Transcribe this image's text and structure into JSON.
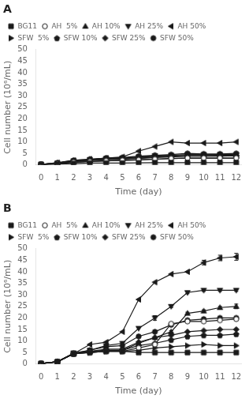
{
  "chart_data": [
    {
      "type": "line",
      "title": "A",
      "xlabel": "Time (day)",
      "ylabel": "Cell number (10⁶/mL)",
      "x": [
        0,
        1,
        2,
        3,
        4,
        5,
        6,
        7,
        8,
        9,
        10,
        11,
        12
      ],
      "xlim": [
        -0.3,
        12.3
      ],
      "xticks": [
        0,
        1,
        2,
        3,
        4,
        5,
        6,
        7,
        8,
        9,
        10,
        11,
        12
      ],
      "ylim": [
        0,
        50
      ],
      "yticks": [
        0,
        5,
        10,
        15,
        20,
        25,
        30,
        35,
        40,
        45,
        50
      ],
      "grid": false,
      "legend": "upper left",
      "series": [
        {
          "name": "BG11",
          "color": "#1a1a1a",
          "marker": "square",
          "values": [
            0.2,
            0.4,
            0.6,
            0.8,
            0.8,
            0.8,
            0.9,
            1.0,
            1.0,
            1.0,
            1.0,
            1.0,
            1.0
          ]
        },
        {
          "name": "AH  5%",
          "color": "#1a1a1a",
          "marker": "circle-open",
          "values": [
            0.2,
            0.5,
            1.2,
            1.5,
            1.8,
            2.0,
            2.2,
            2.5,
            2.8,
            3.0,
            3.0,
            3.0,
            3.0
          ]
        },
        {
          "name": "AH 10%",
          "color": "#1a1a1a",
          "marker": "triangle-up",
          "values": [
            0.2,
            0.8,
            1.5,
            2.0,
            2.5,
            2.8,
            3.0,
            3.5,
            3.8,
            4.0,
            4.0,
            4.2,
            4.2
          ]
        },
        {
          "name": "AH 25%",
          "color": "#1a1a1a",
          "marker": "triangle-down",
          "values": [
            0.2,
            0.8,
            1.8,
            2.3,
            2.8,
            3.0,
            3.5,
            4.0,
            4.2,
            4.5,
            4.5,
            4.5,
            4.5
          ]
        },
        {
          "name": "AH 50%",
          "color": "#1a1a1a",
          "marker": "triangle-left",
          "values": [
            0.2,
            1.0,
            2.0,
            2.5,
            3.0,
            3.5,
            6.0,
            8.0,
            10.0,
            9.5,
            9.5,
            9.5,
            10.0
          ]
        },
        {
          "name": "SFW  5%",
          "color": "#1a1a1a",
          "marker": "triangle-right",
          "values": [
            0.2,
            0.5,
            1.2,
            1.5,
            1.8,
            2.0,
            2.2,
            2.5,
            2.8,
            3.0,
            3.0,
            3.0,
            3.0
          ]
        },
        {
          "name": "SFW 10%",
          "color": "#1a1a1a",
          "marker": "pentagon",
          "values": [
            0.2,
            0.7,
            1.5,
            2.0,
            2.3,
            2.5,
            2.8,
            3.2,
            3.5,
            3.8,
            3.8,
            3.8,
            4.0
          ]
        },
        {
          "name": "SFW 25%",
          "color": "#1a1a1a",
          "marker": "diamond",
          "values": [
            0.2,
            0.8,
            1.8,
            2.3,
            2.8,
            2.8,
            3.2,
            3.8,
            3.8,
            4.0,
            4.0,
            4.0,
            4.0
          ]
        },
        {
          "name": "SFW 50%",
          "color": "#1a1a1a",
          "marker": "circle",
          "values": [
            0.2,
            0.8,
            2.0,
            2.5,
            3.0,
            3.2,
            3.8,
            4.2,
            4.5,
            5.0,
            4.8,
            4.8,
            5.0
          ]
        }
      ]
    },
    {
      "type": "line",
      "title": "B",
      "xlabel": "Time (day)",
      "ylabel": "Cell number (10⁶/mL)",
      "x": [
        0,
        1,
        2,
        3,
        4,
        5,
        6,
        7,
        8,
        9,
        10,
        11,
        12
      ],
      "xlim": [
        -0.3,
        12.3
      ],
      "xticks": [
        0,
        1,
        2,
        3,
        4,
        5,
        6,
        7,
        8,
        9,
        10,
        11,
        12
      ],
      "ylim": [
        0,
        50
      ],
      "yticks": [
        0,
        5,
        10,
        15,
        20,
        25,
        30,
        35,
        40,
        45,
        50
      ],
      "grid": false,
      "legend": "upper left",
      "series": [
        {
          "name": "BG11",
          "color": "#1a1a1a",
          "marker": "square",
          "values": [
            0.2,
            1.0,
            4.5,
            5.0,
            5.5,
            5.5,
            5.0,
            5.0,
            5.0,
            5.0,
            5.0,
            5.0,
            5.0
          ],
          "errors": [
            0,
            0,
            0,
            0,
            0,
            0,
            0,
            0,
            0,
            0,
            0,
            0,
            0
          ]
        },
        {
          "name": "AH  5%",
          "color": "#1a1a1a",
          "marker": "circle-open",
          "values": [
            0.2,
            1.0,
            4.5,
            5.0,
            5.5,
            5.5,
            7.0,
            8.5,
            17.5,
            18.5,
            18.5,
            19.0,
            19.5
          ],
          "errors": [
            0,
            0,
            0,
            0,
            0,
            0,
            0,
            0,
            0.5,
            0,
            0,
            0,
            0.5
          ]
        },
        {
          "name": "AH 10%",
          "color": "#1a1a1a",
          "marker": "triangle-up",
          "values": [
            0.2,
            1.0,
            4.5,
            5.5,
            6.0,
            6.0,
            9.0,
            11.5,
            14.0,
            22.0,
            23.0,
            24.5,
            25.0
          ],
          "errors": [
            0,
            0,
            0,
            0,
            0,
            0,
            0,
            0,
            0.5,
            0.5,
            0.5,
            0.5,
            1.0
          ]
        },
        {
          "name": "AH 25%",
          "color": "#1a1a1a",
          "marker": "triangle-down",
          "values": [
            0.2,
            1.0,
            4.8,
            6.0,
            8.0,
            9.0,
            15.5,
            20.0,
            25.0,
            31.0,
            32.0,
            32.0,
            32.0
          ],
          "errors": [
            0,
            0,
            0,
            0,
            0,
            0,
            0,
            1.0,
            0.5,
            0.5,
            0.5,
            0.5,
            0.5
          ]
        },
        {
          "name": "AH 50%",
          "color": "#1a1a1a",
          "marker": "triangle-left",
          "values": [
            0.2,
            1.0,
            4.5,
            8.5,
            9.5,
            14.0,
            28.0,
            35.5,
            39.0,
            40.0,
            44.0,
            46.0,
            46.5
          ],
          "errors": [
            0,
            0,
            0,
            0,
            0,
            0,
            0,
            0,
            0,
            0,
            1.0,
            1.2,
            1.5
          ]
        },
        {
          "name": "SFW  5%",
          "color": "#1a1a1a",
          "marker": "triangle-right",
          "values": [
            0.2,
            1.0,
            4.5,
            5.0,
            5.5,
            5.5,
            6.0,
            7.0,
            7.5,
            8.0,
            8.5,
            8.0,
            8.0
          ],
          "errors": [
            0,
            0,
            0,
            0,
            0,
            0,
            0,
            0,
            0,
            0,
            0,
            0,
            0
          ]
        },
        {
          "name": "SFW 10%",
          "color": "#1a1a1a",
          "marker": "pentagon",
          "values": [
            0.2,
            1.0,
            4.5,
            5.5,
            6.0,
            6.0,
            8.0,
            9.0,
            10.5,
            12.0,
            12.5,
            12.5,
            13.0
          ],
          "errors": [
            0,
            0,
            0,
            0,
            0,
            0,
            0,
            0,
            0,
            0,
            0,
            0,
            0
          ]
        },
        {
          "name": "SFW 25%",
          "color": "#1a1a1a",
          "marker": "diamond",
          "values": [
            0.2,
            1.0,
            4.5,
            5.5,
            6.5,
            6.5,
            9.5,
            11.5,
            12.5,
            14.0,
            14.5,
            15.0,
            15.0
          ],
          "errors": [
            0,
            0,
            0,
            0,
            0,
            0,
            0,
            0,
            0,
            0,
            0,
            0,
            0
          ]
        },
        {
          "name": "SFW 50%",
          "color": "#1a1a1a",
          "marker": "circle",
          "values": [
            0.2,
            1.0,
            4.5,
            6.0,
            7.5,
            8.0,
            12.0,
            14.0,
            17.0,
            19.0,
            19.5,
            20.0,
            20.0
          ],
          "errors": [
            0,
            0,
            0,
            0,
            0,
            0,
            0,
            0,
            0,
            0,
            0.5,
            0.5,
            0.5
          ]
        }
      ]
    }
  ]
}
